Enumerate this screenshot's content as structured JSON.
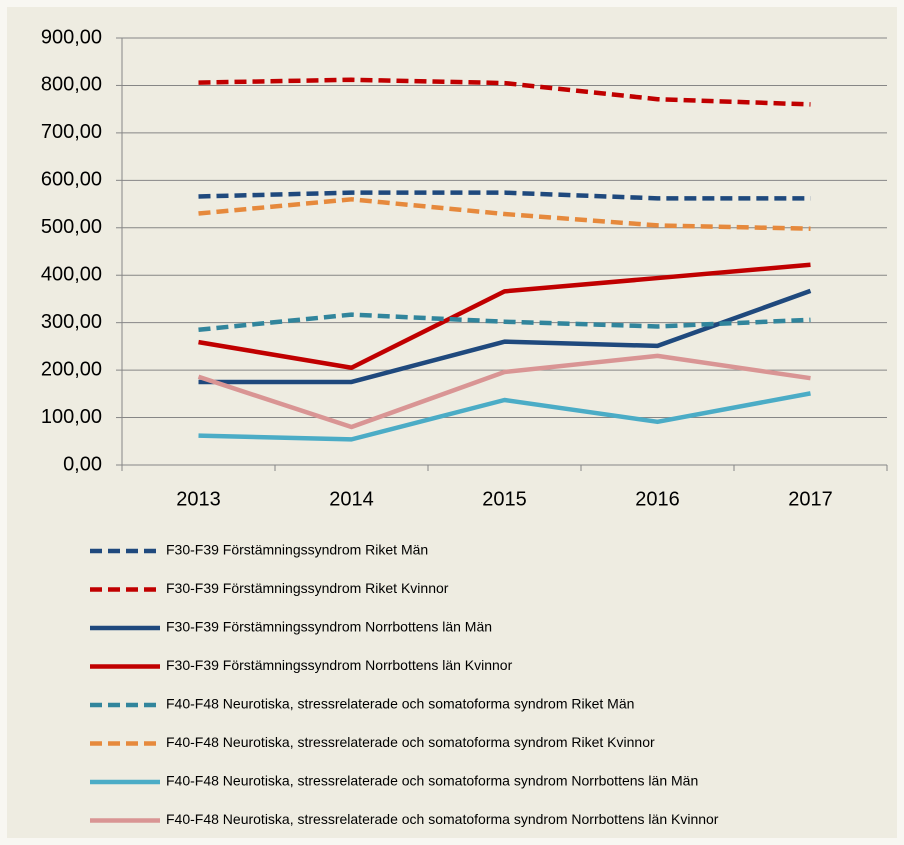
{
  "chart_data": {
    "type": "line",
    "categories": [
      "2013",
      "2014",
      "2015",
      "2016",
      "2017"
    ],
    "ylim": [
      0,
      900
    ],
    "yticks": [
      {
        "value": 0,
        "label": "0,00"
      },
      {
        "value": 100,
        "label": "100,00"
      },
      {
        "value": 200,
        "label": "200,00"
      },
      {
        "value": 300,
        "label": "300,00"
      },
      {
        "value": 400,
        "label": "400,00"
      },
      {
        "value": 500,
        "label": "500,00"
      },
      {
        "value": 600,
        "label": "600,00"
      },
      {
        "value": 700,
        "label": "700,00"
      },
      {
        "value": 800,
        "label": "800,00"
      },
      {
        "value": 900,
        "label": "900,00"
      }
    ],
    "grid": true,
    "legend": "bottom",
    "series": [
      {
        "name": "F30-F39 Förstämningssyndrom Riket Män",
        "color": "#1f497d",
        "line_style": "dashed",
        "values": [
          566,
          574,
          574,
          562,
          562
        ]
      },
      {
        "name": "F30-F39 Förstämningssyndrom Riket Kvinnor",
        "color": "#c00000",
        "line_style": "dashed",
        "values": [
          806,
          812,
          805,
          771,
          760
        ]
      },
      {
        "name": "F30-F39 Förstämningssyndrom Norrbottens län Män",
        "color": "#1f497d",
        "line_style": "solid",
        "values": [
          175,
          175,
          260,
          251,
          367
        ]
      },
      {
        "name": "F30-F39 Förstämningssyndrom Norrbottens län Kvinnor",
        "color": "#c00000",
        "line_style": "solid",
        "values": [
          259,
          205,
          366,
          394,
          422
        ]
      },
      {
        "name": "F40-F48 Neurotiska, stressrelaterade och somatoforma syndrom Riket Män",
        "color": "#31859c",
        "line_style": "dashed",
        "values": [
          285,
          317,
          302,
          292,
          306
        ]
      },
      {
        "name": "F40-F48 Neurotiska, stressrelaterade och somatoforma syndrom Riket Kvinnor",
        "color": "#e6893c",
        "line_style": "dashed",
        "values": [
          530,
          560,
          529,
          505,
          498
        ]
      },
      {
        "name": "F40-F48 Neurotiska, stressrelaterade och somatoforma syndrom Norrbottens län Män",
        "color": "#4bacc6",
        "line_style": "solid",
        "values": [
          62,
          54,
          137,
          91,
          151
        ]
      },
      {
        "name": "F40-F48 Neurotiska, stressrelaterade och somatoforma syndrom Norrbottens län Kvinnor",
        "color": "#d99594",
        "line_style": "solid",
        "values": [
          186,
          80,
          196,
          230,
          183
        ]
      }
    ]
  }
}
